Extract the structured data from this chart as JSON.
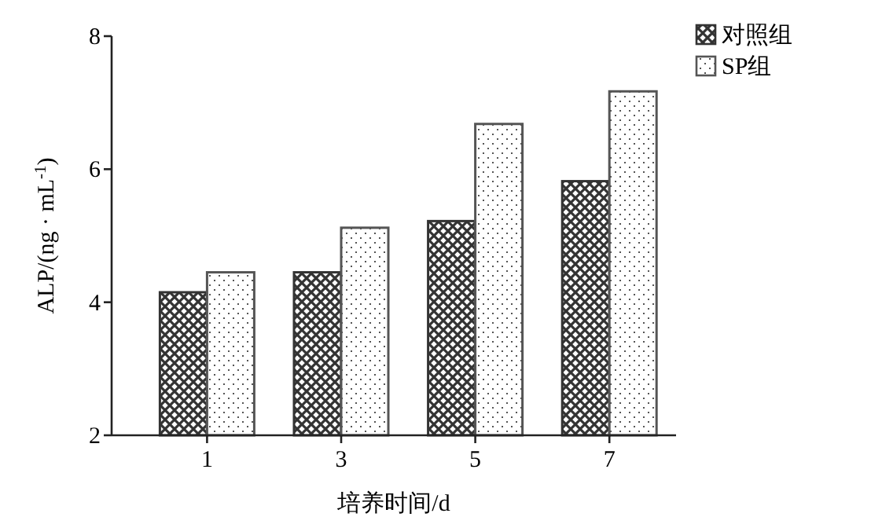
{
  "chart_data": {
    "type": "bar",
    "xlabel": "培养时间/d",
    "ylabel": "ALP/(ng · mL$^{-1}$)",
    "categories": [
      "1",
      "3",
      "5",
      "7"
    ],
    "series": [
      {
        "name": "对照组",
        "color": "#333333",
        "values": [
          4.15,
          4.45,
          5.22,
          5.82
        ]
      },
      {
        "name": "SP组",
        "color": "#555555",
        "values": [
          4.45,
          5.12,
          6.68,
          7.17
        ]
      }
    ],
    "ylim": [
      2,
      8
    ],
    "yticks": [
      2,
      4,
      6,
      8
    ],
    "legend": "top right"
  }
}
